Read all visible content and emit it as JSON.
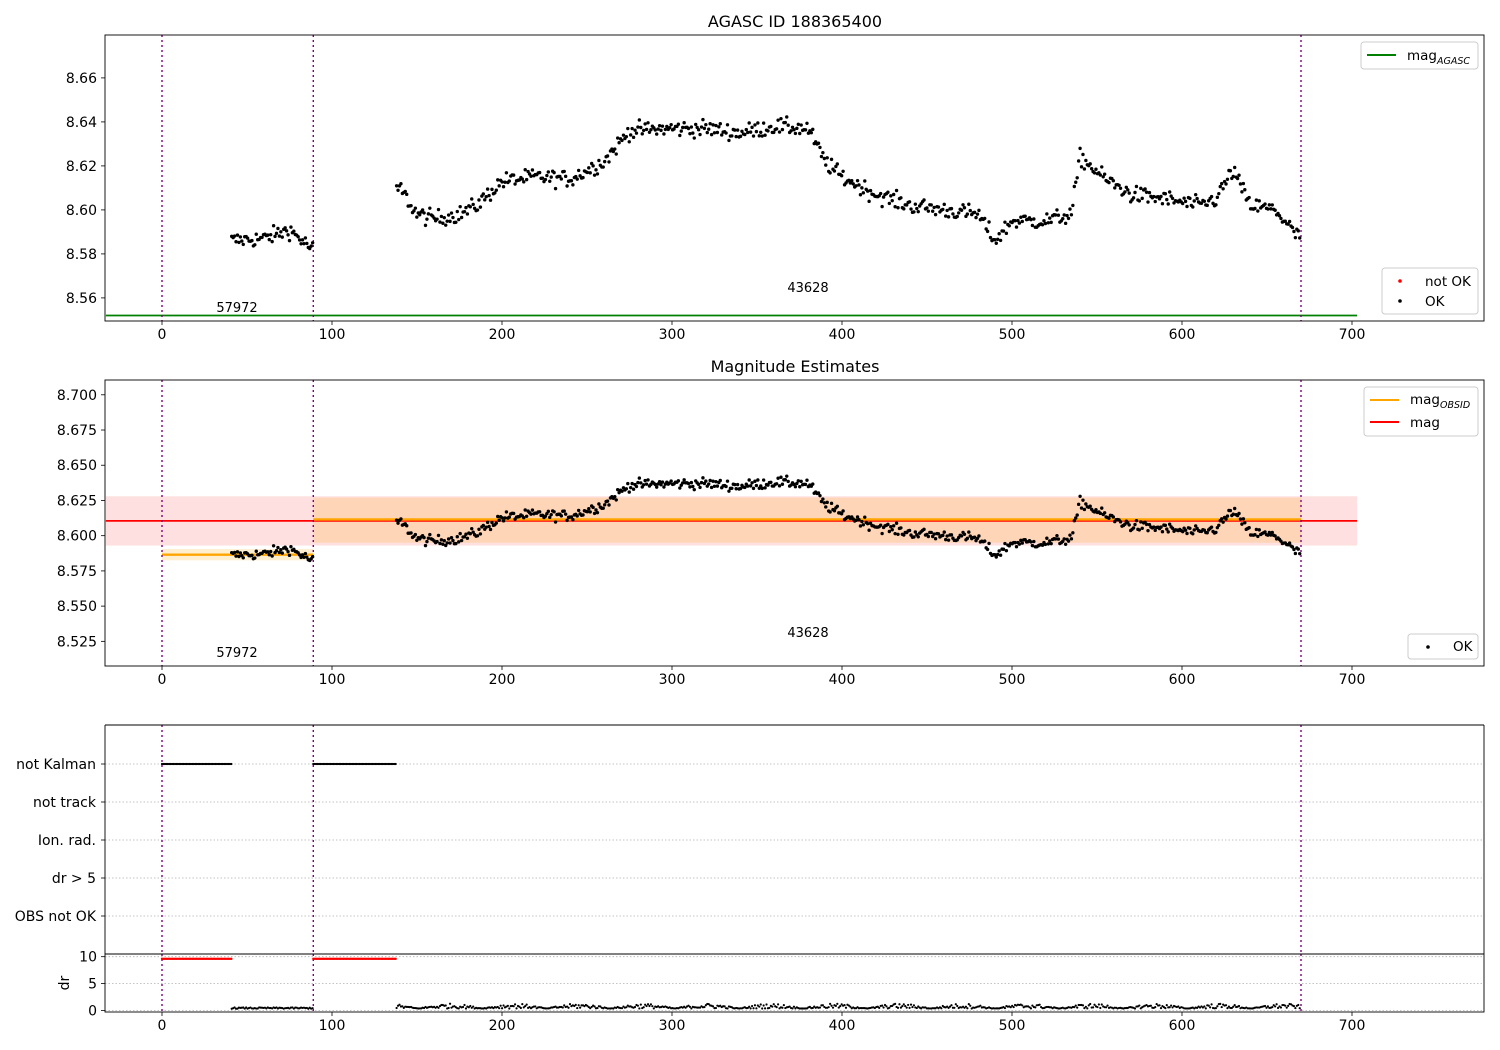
{
  "chart_data": [
    {
      "type": "scatter",
      "title": "AGASC ID 188365400",
      "xlim": [
        -33,
        777
      ],
      "ylim": [
        8.5495,
        8.6795
      ],
      "xticks": [
        "0",
        "100",
        "200",
        "300",
        "400",
        "500",
        "600",
        "700"
      ],
      "yticks": [
        "8.56",
        "8.58",
        "8.60",
        "8.62",
        "8.64",
        "8.66"
      ],
      "reference_lines": [
        {
          "name": "mag",
          "subscript": "AGASC",
          "value": 8.552,
          "x_range": [
            -33,
            703
          ],
          "color": "#008000"
        }
      ],
      "vlines": [
        0,
        89,
        670
      ],
      "vline_color": "#800080",
      "obsid_labels": [
        {
          "text": "57972",
          "x": 44
        },
        {
          "text": "43628",
          "x": 380
        }
      ],
      "series": [
        {
          "name": "not OK",
          "color": "#ff0000",
          "values": []
        },
        {
          "name": "OK",
          "color": "#000000"
        }
      ],
      "legend": [
        "top-right",
        "bottom-right"
      ],
      "grid": false
    },
    {
      "type": "scatter",
      "title": "Magnitude Estimates",
      "xlim": [
        -33,
        777
      ],
      "ylim": [
        8.5075,
        8.7105
      ],
      "xticks": [
        "0",
        "100",
        "200",
        "300",
        "400",
        "500",
        "600",
        "700"
      ],
      "yticks": [
        "8.525",
        "8.550",
        "8.575",
        "8.600",
        "8.625",
        "8.650",
        "8.675",
        "8.700"
      ],
      "reference_lines": [
        {
          "name": "mag",
          "subscript": "OBSID",
          "color": "#ffa500",
          "segments": [
            {
              "x": [
                0,
                89
              ],
              "value": 8.5865,
              "band": [
                8.5825,
                8.5905
              ]
            },
            {
              "x": [
                89,
                670
              ],
              "value": 8.6115,
              "band": [
                8.595,
                8.627
              ]
            }
          ]
        },
        {
          "name": "mag",
          "subscript": "",
          "color": "#ff0000",
          "value": 8.6105,
          "band": [
            8.593,
            8.628
          ],
          "x_range": [
            -33,
            703
          ]
        }
      ],
      "vlines": [
        0,
        89,
        670
      ],
      "obsid_labels": [
        {
          "text": "57972",
          "x": 44
        },
        {
          "text": "43628",
          "x": 380
        }
      ],
      "series": [
        {
          "name": "OK",
          "color": "#000000"
        }
      ],
      "legend": [
        "top-right",
        "bottom-right"
      ],
      "grid": false
    },
    {
      "type": "scatter",
      "title": "",
      "categories": [
        "not Kalman",
        "not track",
        "Ion. rad.",
        "dr > 5",
        "OBS not OK"
      ],
      "flag_ranges": [
        {
          "category": "not Kalman",
          "x": [
            0,
            41
          ]
        },
        {
          "category": "not Kalman",
          "x": [
            89,
            138
          ]
        }
      ],
      "vlines": [
        0,
        89,
        670
      ],
      "grid": true
    },
    {
      "type": "scatter",
      "ylabel": "dr",
      "xlim": [
        -33,
        777
      ],
      "ylim": [
        -0.3,
        10.5
      ],
      "xticks": [
        "0",
        "100",
        "200",
        "300",
        "400",
        "500",
        "600",
        "700"
      ],
      "yticks": [
        "0",
        "5",
        "10"
      ],
      "flagged_ranges": [
        {
          "x": [
            0,
            41
          ],
          "value": 9.6,
          "color": "#ff0000"
        },
        {
          "x": [
            89,
            138
          ],
          "value": 9.6,
          "color": "#ff0000"
        }
      ],
      "vlines": [
        0,
        89,
        670
      ],
      "grid": true
    }
  ],
  "legends": {
    "top1": [
      {
        "label": "mag",
        "sub": "AGASC",
        "color": "#008000"
      }
    ],
    "bottom1": [
      {
        "label": "not OK",
        "color": "#ff0000"
      },
      {
        "label": "OK",
        "color": "#000000"
      }
    ],
    "top2": [
      {
        "label": "mag",
        "sub": "OBSID",
        "color": "#ffa500"
      },
      {
        "label": "mag",
        "sub": "",
        "color": "#ff0000"
      }
    ],
    "bottom2": [
      {
        "label": "OK",
        "color": "#000000"
      }
    ]
  }
}
